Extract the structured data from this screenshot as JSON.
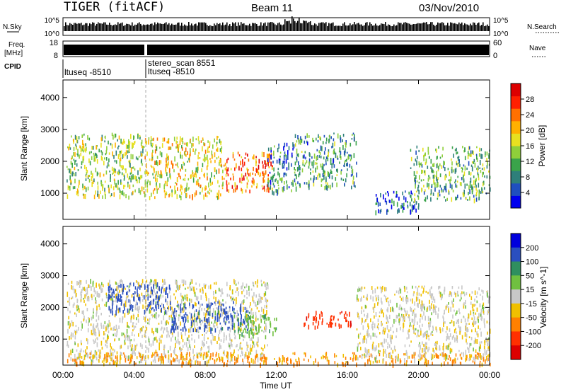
{
  "header": {
    "station": "TIGER (fitACF)",
    "beam": "Beam 11",
    "date": "03/Nov/2010"
  },
  "strips": {
    "nsky_label": "N.Sky",
    "nsky_ticks": [
      "10^5",
      "10^0"
    ],
    "nsearch_label": "N.Search",
    "nsearch_ticks": [
      "10^5",
      "10^0"
    ],
    "freq_label_line1": "Freq.",
    "freq_label_line2": "[MHz]",
    "freq_ticks": [
      "18",
      "8"
    ],
    "nave_label": "Nave",
    "nave_ticks": [
      "60",
      "0"
    ],
    "cpid_label": "CPID",
    "cpid_entries": [
      {
        "text": "ltuseq -8510",
        "time": 0.0
      },
      {
        "text": "stereo_scan 8551",
        "time": 4.75
      },
      {
        "text": "ltuseq -8510",
        "time": 4.75
      }
    ]
  },
  "chart_data": [
    {
      "type": "heatmap",
      "title": "Power",
      "ylabel": "Slant Range [km]",
      "xlabel": "Time UT",
      "xlim": [
        0,
        24
      ],
      "ylim": [
        180,
        4550
      ],
      "yticks": [
        1000,
        2000,
        3000,
        4000
      ],
      "colorbar": {
        "label": "Power [dB]",
        "ticks": [
          4,
          8,
          12,
          16,
          20,
          24,
          28
        ],
        "range": [
          0,
          32
        ],
        "colors": [
          "#0000ee",
          "#1f4fbf",
          "#2e7f7a",
          "#3aa34a",
          "#8fcf3a",
          "#e8e020",
          "#ffb000",
          "#ff7000",
          "#ff2000",
          "#dd0000"
        ]
      },
      "regions": [
        {
          "t": [
            0.2,
            4.5
          ],
          "r": [
            900,
            2900
          ],
          "value": 14
        },
        {
          "t": [
            4.5,
            9.0
          ],
          "r": [
            900,
            2800
          ],
          "value": 18
        },
        {
          "t": [
            9.0,
            11.8
          ],
          "r": [
            1100,
            2300
          ],
          "value": 24
        },
        {
          "t": [
            11.5,
            13.0
          ],
          "r": [
            1000,
            2600
          ],
          "value": 8
        },
        {
          "t": [
            13.0,
            16.5
          ],
          "r": [
            1200,
            2900
          ],
          "value": 10
        },
        {
          "t": [
            17.5,
            20.0
          ],
          "r": [
            450,
            1100
          ],
          "value": 6
        },
        {
          "t": [
            19.5,
            24.0
          ],
          "r": [
            800,
            2500
          ],
          "value": 12
        }
      ]
    },
    {
      "type": "heatmap",
      "title": "Velocity",
      "ylabel": "Slant Range [km]",
      "xlabel": "Time UT",
      "xlim": [
        0,
        24
      ],
      "ylim": [
        180,
        4550
      ],
      "yticks": [
        1000,
        2000,
        3000,
        4000
      ],
      "xticks": [
        "00:00",
        "04:00",
        "08:00",
        "12:00",
        "16:00",
        "20:00",
        "00:00"
      ],
      "colorbar": {
        "label": "Velocity [m s^-1]",
        "ticks": [
          "200",
          "100",
          "50",
          "15",
          "-15",
          "-50",
          "-100",
          "-200"
        ],
        "colors": [
          "#0000dd",
          "#2a4fbf",
          "#2f8f5f",
          "#70c040",
          "#c8c8c8",
          "#f0c000",
          "#ff8000",
          "#ff3000",
          "#dd0000"
        ]
      },
      "regions": [
        {
          "t": [
            0.2,
            11.5
          ],
          "r": [
            300,
            2900
          ],
          "value": -5
        },
        {
          "t": [
            2.5,
            6.0
          ],
          "r": [
            1900,
            2800
          ],
          "value": 150
        },
        {
          "t": [
            6.0,
            10.5
          ],
          "r": [
            1300,
            2200
          ],
          "value": 120
        },
        {
          "t": [
            9.5,
            12.0
          ],
          "r": [
            1100,
            1800
          ],
          "value": 40
        },
        {
          "t": [
            13.5,
            16.2
          ],
          "r": [
            1400,
            1900
          ],
          "value": -180
        },
        {
          "t": [
            0.2,
            24.0
          ],
          "r": [
            250,
            600
          ],
          "value": -60
        },
        {
          "t": [
            16.5,
            24.0
          ],
          "r": [
            400,
            2700
          ],
          "value": -5
        }
      ]
    }
  ]
}
